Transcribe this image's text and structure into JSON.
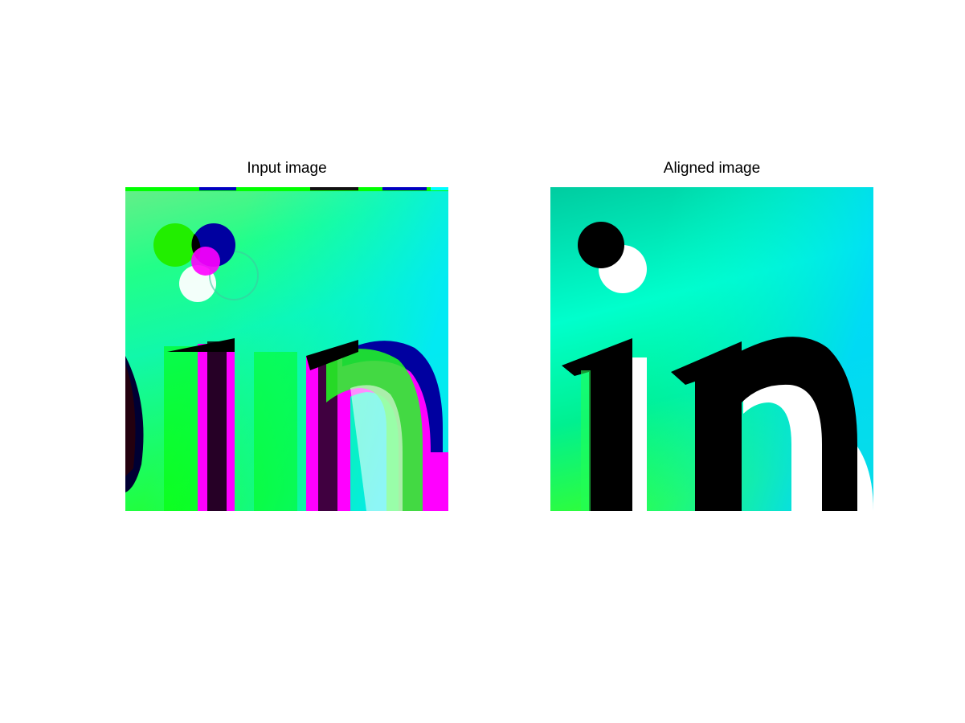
{
  "figure": {
    "panels": [
      {
        "title": "Input image",
        "image_description": "misaligned RGB color channels of the letters 'in' with a dot, green/cyan background with magenta, blue and white fringes"
      },
      {
        "title": "Aligned image",
        "image_description": "aligned color channels showing black letters 'in' and a black dot with white offset shadow on a green-to-cyan gradient background"
      }
    ]
  },
  "colors": {
    "background": "#ffffff",
    "gradient_top": "#00e0c8",
    "gradient_mid": "#00f0d8",
    "gradient_bottom": "#22ff44",
    "misregistered_magenta": "#ff00ff",
    "misregistered_blue": "#0000a0",
    "misregistered_green": "#00ff00",
    "glyph": "#000000"
  }
}
